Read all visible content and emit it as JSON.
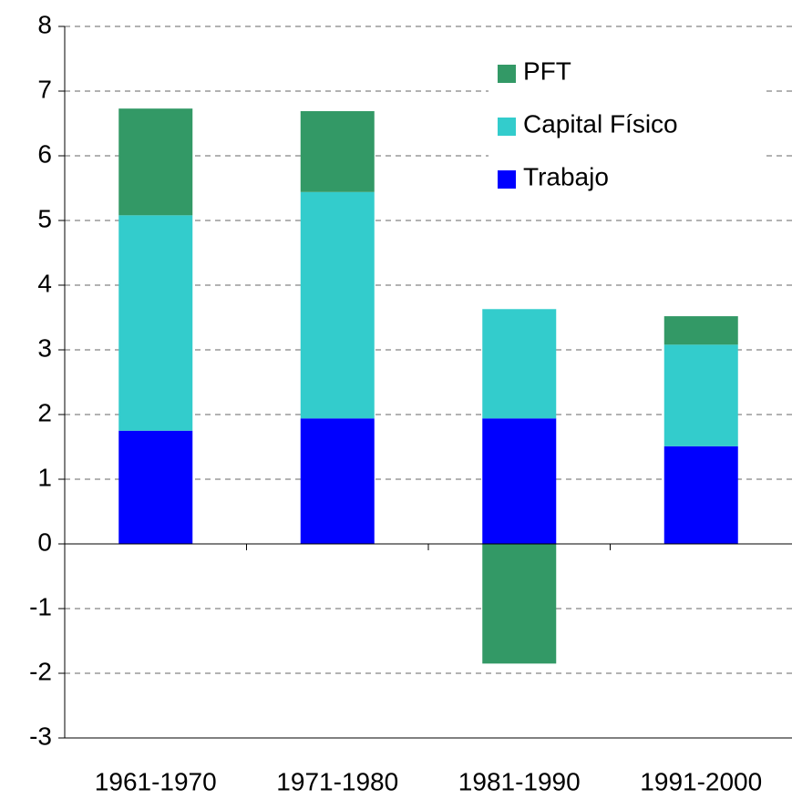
{
  "chart_data": {
    "type": "stacked_bar",
    "categories": [
      "1961-1970",
      "1971-1980",
      "1981-1990",
      "1991-2000"
    ],
    "series": [
      {
        "name": "Trabajo",
        "color": "#0000ff",
        "values": [
          1.75,
          1.94,
          1.94,
          1.51
        ]
      },
      {
        "name": "Capital Físico",
        "color": "#33cccc",
        "values": [
          3.33,
          3.5,
          1.69,
          1.57
        ]
      },
      {
        "name": "PFT",
        "color": "#339966",
        "values": [
          1.65,
          1.25,
          -1.85,
          0.44
        ]
      }
    ],
    "ylim": [
      -3,
      8
    ],
    "yticks": [
      -3,
      -2,
      -1,
      0,
      1,
      2,
      3,
      4,
      5,
      6,
      7,
      8
    ],
    "grid": true,
    "legend": "upper right"
  }
}
